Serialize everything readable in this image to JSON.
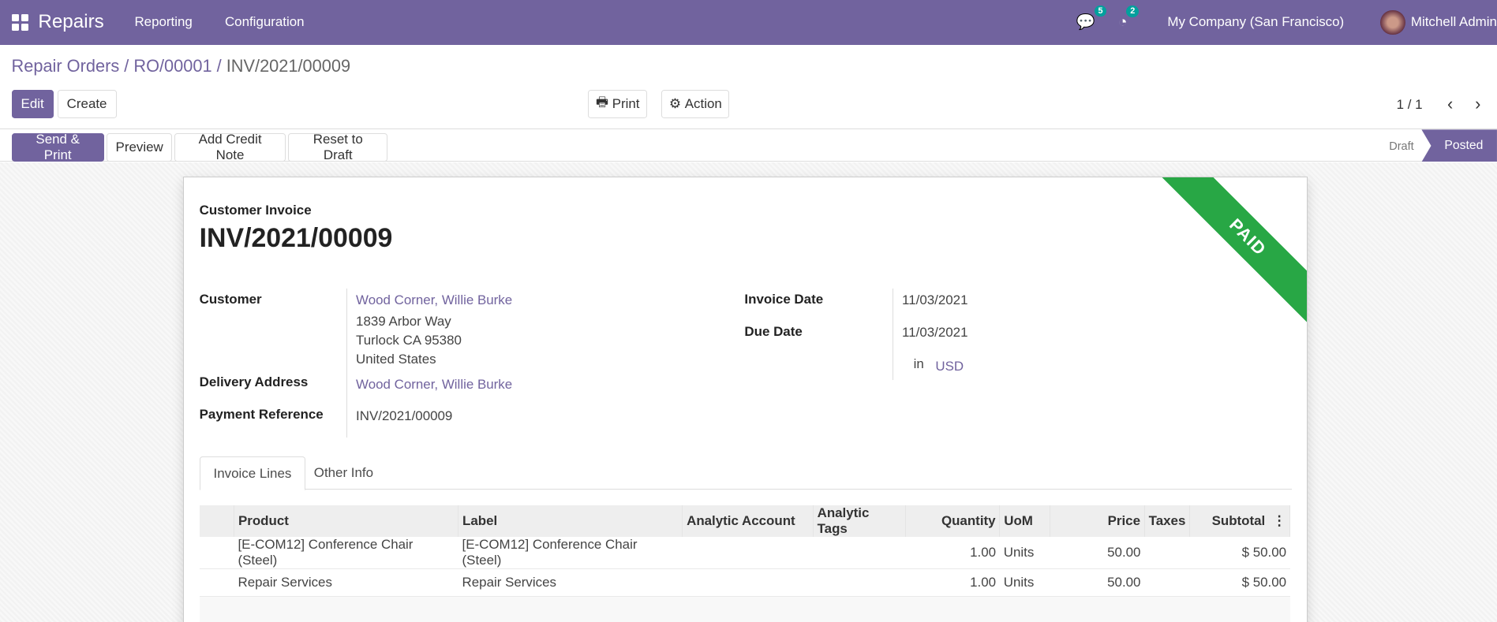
{
  "topbar": {
    "app": "Repairs",
    "menus": [
      "Reporting",
      "Configuration"
    ],
    "messages_count": "5",
    "activities_count": "2",
    "company": "My Company (San Francisco)",
    "user": "Mitchell Admin"
  },
  "breadcrumb": {
    "items": [
      "Repair Orders",
      "RO/00001"
    ],
    "current": "INV/2021/00009"
  },
  "buttons": {
    "edit": "Edit",
    "create": "Create",
    "print": "Print",
    "action": "Action"
  },
  "pager": "1 / 1",
  "status_buttons": [
    "Send & Print",
    "Preview",
    "Add Credit Note",
    "Reset to Draft"
  ],
  "statusbar": {
    "stages": [
      "Draft",
      "Posted"
    ],
    "current": "Posted"
  },
  "invoice": {
    "type": "Customer Invoice",
    "number": "INV/2021/00009",
    "ribbon": "PAID",
    "customer_label": "Customer",
    "customer": "Wood Corner, Willie Burke",
    "address": [
      "1839 Arbor Way",
      "Turlock CA 95380",
      "United States"
    ],
    "delivery_label": "Delivery Address",
    "delivery": "Wood Corner, Willie Burke",
    "payref_label": "Payment Reference",
    "payref": "INV/2021/00009",
    "invoice_date_label": "Invoice Date",
    "invoice_date": "11/03/2021",
    "due_date_label": "Due Date",
    "due_date": "11/03/2021",
    "currency_in": "in",
    "currency": "USD"
  },
  "tabs": [
    "Invoice Lines",
    "Other Info"
  ],
  "lines": {
    "headers": [
      "Product",
      "Label",
      "Analytic Account",
      "Analytic Tags",
      "Quantity",
      "UoM",
      "Price",
      "Taxes",
      "Subtotal"
    ],
    "rows": [
      [
        "[E-COM12] Conference Chair (Steel)",
        "[E-COM12] Conference Chair (Steel)",
        "",
        "",
        "1.00",
        "Units",
        "50.00",
        "",
        "$ 50.00"
      ],
      [
        "Repair Services",
        "Repair Services",
        "",
        "",
        "1.00",
        "Units",
        "50.00",
        "",
        "$ 50.00"
      ]
    ]
  }
}
